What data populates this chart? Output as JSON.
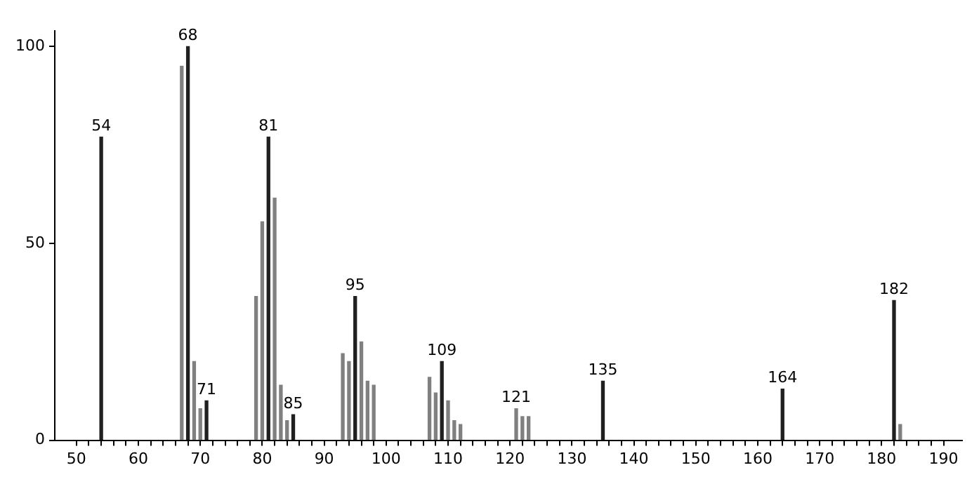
{
  "chart_data": {
    "type": "bar",
    "x": [
      54,
      67,
      68,
      69,
      70,
      71,
      79,
      80,
      81,
      82,
      83,
      84,
      85,
      93,
      94,
      95,
      96,
      97,
      98,
      107,
      108,
      109,
      110,
      111,
      112,
      121,
      122,
      123,
      135,
      164,
      182,
      183
    ],
    "values": [
      77,
      95,
      100,
      20,
      8,
      10,
      36.5,
      55.5,
      77,
      61.5,
      14,
      5,
      6.5,
      22,
      20,
      36.5,
      25,
      15,
      14,
      16,
      12,
      20,
      10,
      5,
      4,
      8,
      6,
      6,
      15,
      13,
      35.5,
      4
    ],
    "colors": [
      "#202020",
      "#808080",
      "#202020",
      "#808080",
      "#808080",
      "#202020",
      "#808080",
      "#808080",
      "#202020",
      "#808080",
      "#808080",
      "#808080",
      "#202020",
      "#808080",
      "#808080",
      "#202020",
      "#808080",
      "#808080",
      "#808080",
      "#808080",
      "#808080",
      "#202020",
      "#808080",
      "#808080",
      "#808080",
      "#808080",
      "#808080",
      "#808080",
      "#202020",
      "#202020",
      "#202020",
      "#808080"
    ],
    "xlim": [
      46.5,
      193
    ],
    "xticks": [
      50,
      {
        "value": 52,
        "label": null
      },
      {
        "value": 54,
        "label": null
      },
      {
        "value": 56,
        "label": null
      },
      {
        "value": 58,
        "label": null
      },
      60,
      {
        "value": 62,
        "label": null
      },
      {
        "value": 64,
        "label": null
      },
      {
        "value": 66,
        "label": null
      },
      {
        "value": 68,
        "label": null
      },
      70,
      {
        "value": 72,
        "label": null
      },
      {
        "value": 74,
        "label": null
      },
      {
        "value": 76,
        "label": null
      },
      {
        "value": 78,
        "label": null
      },
      80,
      {
        "value": 82,
        "label": null
      },
      {
        "value": 84,
        "label": null
      },
      {
        "value": 86,
        "label": null
      },
      {
        "value": 88,
        "label": null
      },
      90,
      {
        "value": 92,
        "label": null
      },
      {
        "value": 94,
        "label": null
      },
      {
        "value": 96,
        "label": null
      },
      {
        "value": 98,
        "label": null
      },
      100,
      {
        "value": 102,
        "label": null
      },
      {
        "value": 104,
        "label": null
      },
      {
        "value": 106,
        "label": null
      },
      {
        "value": 108,
        "label": null
      },
      110,
      {
        "value": 112,
        "label": null
      },
      {
        "value": 114,
        "label": null
      },
      {
        "value": 116,
        "label": null
      },
      {
        "value": 118,
        "label": null
      },
      120,
      {
        "value": 122,
        "label": null
      },
      {
        "value": 124,
        "label": null
      },
      {
        "value": 126,
        "label": null
      },
      {
        "value": 128,
        "label": null
      },
      130,
      {
        "value": 132,
        "label": null
      },
      {
        "value": 134,
        "label": null
      },
      {
        "value": 136,
        "label": null
      },
      {
        "value": 138,
        "label": null
      },
      140,
      {
        "value": 142,
        "label": null
      },
      {
        "value": 144,
        "label": null
      },
      {
        "value": 146,
        "label": null
      },
      {
        "value": 148,
        "label": null
      },
      150,
      {
        "value": 152,
        "label": null
      },
      {
        "value": 154,
        "label": null
      },
      {
        "value": 156,
        "label": null
      },
      {
        "value": 158,
        "label": null
      },
      160,
      {
        "value": 162,
        "label": null
      },
      {
        "value": 164,
        "label": null
      },
      {
        "value": 166,
        "label": null
      },
      {
        "value": 168,
        "label": null
      },
      170,
      {
        "value": 172,
        "label": null
      },
      {
        "value": 174,
        "label": null
      },
      {
        "value": 176,
        "label": null
      },
      {
        "value": 178,
        "label": null
      },
      180,
      {
        "value": 182,
        "label": null
      },
      {
        "value": 184,
        "label": null
      },
      {
        "value": 186,
        "label": null
      },
      {
        "value": 188,
        "label": null
      },
      190
    ],
    "ylim": [
      0,
      104
    ],
    "yticks": [
      0,
      50,
      100
    ],
    "grid": false,
    "legend": false,
    "annotations": [
      {
        "text": "54",
        "x": 54,
        "y": 77
      },
      {
        "text": "68",
        "x": 68,
        "y": 100
      },
      {
        "text": "71",
        "x": 71,
        "y": 10
      },
      {
        "text": "81",
        "x": 81,
        "y": 77
      },
      {
        "text": "85",
        "x": 85,
        "y": 6.5
      },
      {
        "text": "95",
        "x": 95,
        "y": 36.5
      },
      {
        "text": "109",
        "x": 109,
        "y": 20
      },
      {
        "text": "121",
        "x": 121,
        "y": 8
      },
      {
        "text": "135",
        "x": 135,
        "y": 15
      },
      {
        "text": "164",
        "x": 164,
        "y": 13
      },
      {
        "text": "182",
        "x": 182,
        "y": 35.5
      }
    ]
  }
}
